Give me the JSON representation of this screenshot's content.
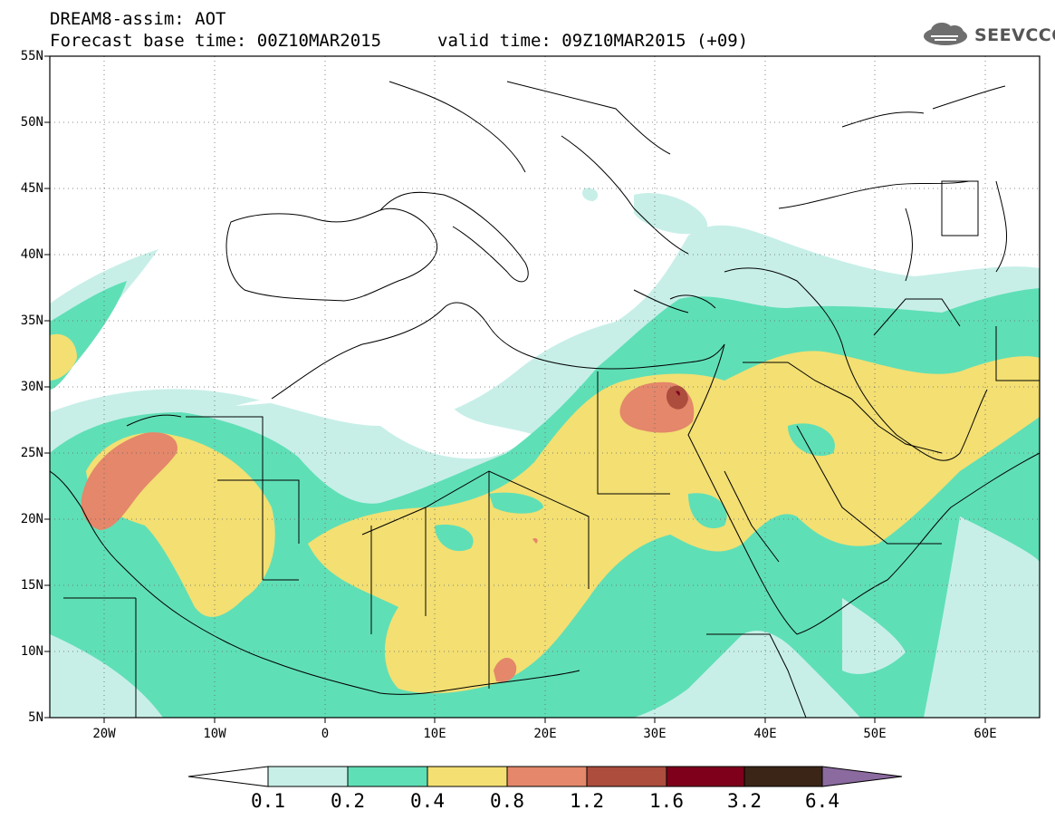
{
  "header": {
    "line1": "DREAM8-assim: AOT",
    "line2": "Forecast base time: 00Z10MAR2015",
    "valid": "valid time: 09Z10MAR2015 (+09)"
  },
  "logo": {
    "text": "SEEVCCC"
  },
  "map": {
    "product": "aerosol optical thickness",
    "lat_labels": [
      "55N",
      "50N",
      "45N",
      "40N",
      "35N",
      "30N",
      "25N",
      "20N",
      "15N",
      "10N",
      "5N"
    ],
    "lon_labels": [
      "20W",
      "10W",
      "0",
      "10E",
      "20E",
      "30E",
      "40E",
      "50E",
      "60E"
    ],
    "extent": {
      "lon_min": -25,
      "lon_max": 65,
      "lat_min": 5,
      "lat_max": 55
    },
    "gridlines": "dotted"
  },
  "colorbar": {
    "labels": [
      "0.1",
      "0.2",
      "0.4",
      "0.8",
      "1.2",
      "1.6",
      "3.2",
      "6.4"
    ],
    "colors": [
      "#ffffff",
      "#c7efe8",
      "#5fdfb6",
      "#f3df72",
      "#e4876a",
      "#ac4d3d",
      "#7e001b",
      "#3a2517",
      "#8b6aa0"
    ]
  }
}
